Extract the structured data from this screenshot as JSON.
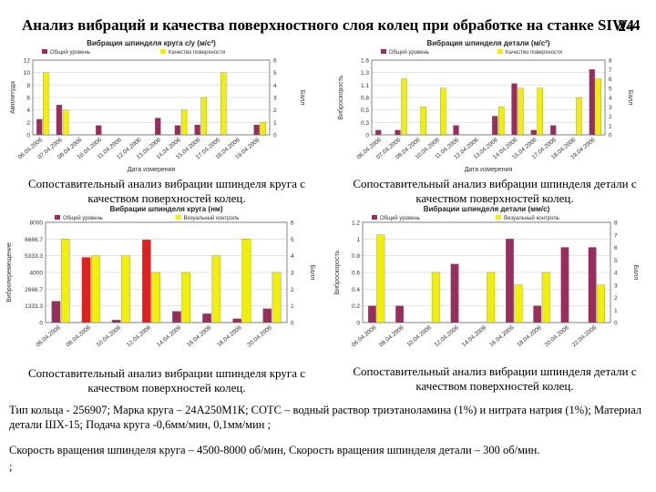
{
  "title": "Анализ вибраций и качества поверхностного слоя колец при обработке на станке SIW-4",
  "page_number": "24",
  "captions": [
    "Сопоставительный анализ вибрации шпинделя круга с качеством поверхностей колец.",
    "Сопоставительный анализ вибрации шпинделя детали с качеством поверхностей колец.",
    "Сопоставительный анализ вибрации шпинделя круга с качеством поверхностей колец.",
    "Сопоставительный анализ вибрации шпинделя детали с качеством поверхностей колец."
  ],
  "footer": {
    "line1": "Тип кольца - 256907; Марка круга – 24А250М1К; СОТС – водный раствор триэтаноламина (1%) и нитрата натрия (1%); Материал детали ШХ-15; Подача круга -0,6мм/мин, 0,1мм/мин ;",
    "line2": "Скорость вращения шпинделя круга – 4500-8000 об/мин, Скорость вращения шпинделя детали – 300 об/мин.",
    "line3": ";"
  },
  "colors": {
    "series1": "#9b2d5e",
    "series2": "#f0f000",
    "axis": "#555555",
    "grid": "#cccccc",
    "highlight": "#e02020"
  },
  "chart_data": [
    {
      "type": "bar",
      "title": "Вибрация шпинделя круга с/у (м/с²)",
      "xlabel": "Дата измерения",
      "ylabel": "Амплитуда",
      "y2label": "Балл",
      "categories": [
        "06.04.2006",
        "07.04.2006",
        "08.04.2006",
        "10.04.2006",
        "11.04.2006",
        "12.04.2006",
        "13.04.2006",
        "14.04.2006",
        "15.04.2006",
        "17.04.2006",
        "18.04.2006",
        "19.04.2006"
      ],
      "ylim": [
        0,
        12
      ],
      "y2lim": [
        0,
        6
      ],
      "series": [
        {
          "name": "Общий уровень",
          "axis": "left",
          "values": [
            2.5,
            4.8,
            0,
            1.5,
            0,
            0,
            2.7,
            1.5,
            1.6,
            0,
            0,
            1.6
          ]
        },
        {
          "name": "Качество поверхности",
          "axis": "right",
          "values": [
            5,
            2,
            0,
            0,
            0,
            0,
            0,
            2,
            3,
            5,
            0,
            1
          ]
        }
      ]
    },
    {
      "type": "bar",
      "title": "Вибрация шпинделя детали (м/с²)",
      "xlabel": "Дата измерения",
      "ylabel": "Виброскорость",
      "y2label": "Балл",
      "categories": [
        "06.04.2006",
        "07.04.2006",
        "08.04.2006",
        "10.04.2006",
        "11.04.2006",
        "12.04.2006",
        "13.04.2006",
        "14.04.2006",
        "15.04.2006",
        "17.04.2006",
        "18.04.2006",
        "19.04.2006"
      ],
      "ylim": [
        0,
        1.6
      ],
      "y2lim": [
        0,
        8
      ],
      "series": [
        {
          "name": "Общий уровень",
          "axis": "left",
          "values": [
            0.1,
            0.1,
            0,
            0,
            0.2,
            0,
            0.4,
            1.1,
            0.1,
            0.2,
            0,
            1.4
          ]
        },
        {
          "name": "Качество поверхности",
          "axis": "right",
          "values": [
            0,
            6,
            3,
            5,
            0,
            0,
            3,
            5,
            5,
            0,
            4,
            6
          ]
        }
      ]
    },
    {
      "type": "bar",
      "title": "Вибрации шпинделя круга (нм)",
      "ylabel": "Виброперемещение",
      "y2label": "Балл",
      "categories": [
        "06.04.2006",
        "08.04.2006",
        "10.04.2006",
        "12.04.2006",
        "14.04.2006",
        "16.04.2006",
        "18.04.2006",
        "20.04.2006"
      ],
      "ylim": [
        0,
        8000
      ],
      "y2lim": [
        0,
        6
      ],
      "series": [
        {
          "name": "Общий уровень",
          "axis": "left",
          "values": [
            1700,
            5200,
            200,
            6600,
            900,
            700,
            300,
            1100
          ]
        },
        {
          "name": "Визуальный контроль",
          "axis": "right",
          "values": [
            5,
            4,
            4,
            3,
            3,
            4,
            5,
            3
          ]
        }
      ]
    },
    {
      "type": "bar",
      "title": "Вибрации шпинделя детали (мм/с)",
      "ylabel": "Виброскорость",
      "y2label": "Балл",
      "categories": [
        "06.04.2006",
        "08.04.2006",
        "10.04.2006",
        "12.04.2006",
        "14.04.2006",
        "16.04.2006",
        "18.04.2006",
        "20.04.2006",
        "22.04.2006"
      ],
      "ylim": [
        0,
        1.2
      ],
      "y2lim": [
        0,
        8
      ],
      "series": [
        {
          "name": "Общий уровень",
          "axis": "left",
          "values": [
            0.2,
            0.2,
            0,
            0.7,
            0,
            1,
            0.2,
            0.9,
            0.9
          ]
        },
        {
          "name": "Визуальный контроль",
          "axis": "right",
          "values": [
            7,
            0,
            4,
            0,
            4,
            3,
            4,
            0,
            3
          ]
        }
      ]
    }
  ]
}
